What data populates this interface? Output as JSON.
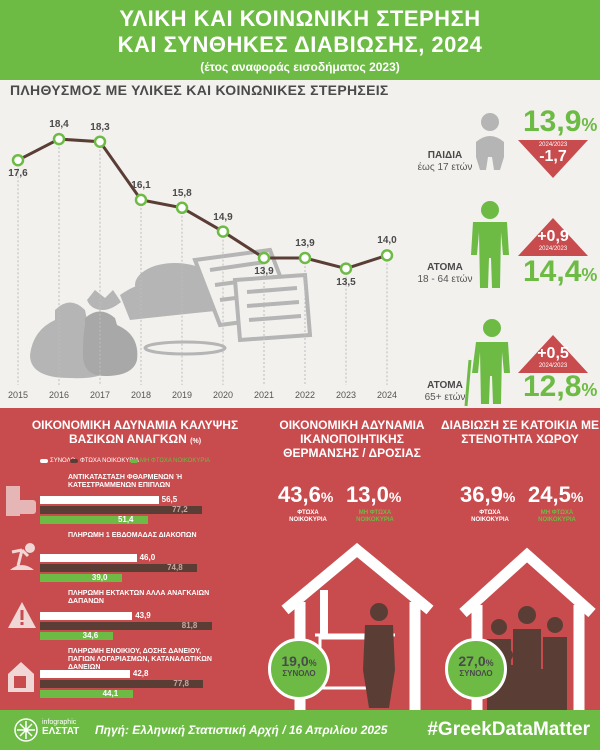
{
  "header": {
    "title_line1": "ΥΛΙΚΗ ΚΑΙ ΚΟΙΝΩΝΙΚΗ ΣΤΕΡΗΣΗ",
    "title_line2": "ΚΑΙ ΣΥΝΘΗΚΕΣ ΔΙΑΒΙΩΣΗΣ, 2024",
    "subtitle": "(έτος αναφοράς εισοδήματος 2023)"
  },
  "section1": {
    "title": "ΠΛΗΘΥΣΜΟΣ ΜΕ ΥΛΙΚΕΣ ΚΑΙ ΚΟΙΝΩΝΙΚΕΣ ΣΤΕΡΗΣΕΙΣ"
  },
  "chart_data": [
    {
      "type": "line",
      "title": "ΠΛΗΘΥΣΜΟΣ ΜΕ ΥΛΙΚΕΣ ΚΑΙ ΚΟΙΝΩΝΙΚΕΣ ΣΤΕΡΗΣΕΙΣ",
      "x": [
        "2015",
        "2016",
        "2017",
        "2018",
        "2019",
        "2020",
        "2021",
        "2022",
        "2023",
        "2024"
      ],
      "y": [
        17.6,
        18.4,
        18.3,
        16.1,
        15.8,
        14.9,
        13.9,
        13.9,
        13.5,
        14.0
      ],
      "labels": [
        "17,6",
        "18,4",
        "18,3",
        "16,1",
        "15,8",
        "14,9",
        "13,9",
        "13,9",
        "13,5",
        "14,0"
      ],
      "ylim": [
        12.5,
        19.5
      ],
      "line_color": "#5a3e36",
      "marker_color": "#6dbb45"
    },
    {
      "type": "bar",
      "title": "ΟΙΚΟΝΟΜΙΚΗ ΑΔΥΝΑΜΙΑ ΚΑΛΥΨΗΣ ΒΑΣΙΚΩΝ ΑΝΑΓΚΩΝ",
      "unit": "(%)",
      "categories": [
        "ΑΝΤΙΚΑΤΑΣΤΑΣΗ ΦΘΑΡΜΕΝΩΝ Ή ΚΑΤΕΣΤΡΑΜΜΕΝΩΝ ΕΠΙΠΛΩΝ",
        "ΠΛΗΡΩΜΗ 1 ΕΒΔΟΜΑΔΑΣ ΔΙΑΚΟΠΩΝ",
        "ΠΛΗΡΩΜΗ ΕΚΤΑΚΤΩΝ ΑΛΛΑ ΑΝΑΓΚΑΙΩΝ ΔΑΠΑΝΩΝ",
        "ΠΛΗΡΩΜΗ ΕΝΟΙΚΙΟΥ, ΔΟΣΗΣ ΔΑΝΕΙΟΥ, ΠΑΓΙΩΝ ΛΟΓΑΡΙΑΣΜΩΝ, ΚΑΤΑΝΑΛΩΤΙΚΩΝ ΔΑΝΕΙΩΝ"
      ],
      "series": [
        {
          "name": "ΣΥΝΟΛΟ",
          "values": [
            56.5,
            46.0,
            43.9,
            42.8
          ],
          "labels": [
            "56,5",
            "46,0",
            "43,9",
            "42,8"
          ],
          "color": "#ffffff"
        },
        {
          "name": "ΦΤΩΧΑ ΝΟΙΚΟΚΥΡΙΑ",
          "values": [
            77.2,
            74.8,
            81.8,
            77.8
          ],
          "labels": [
            "77,2",
            "74,8",
            "81,8",
            "77,8"
          ],
          "color": "#5a3e36"
        },
        {
          "name": "ΜΗ ΦΤΩΧΑ ΝΟΙΚΟΚΥΡΙΑ",
          "values": [
            51.4,
            39.0,
            34.6,
            44.1
          ],
          "labels": [
            "51,4",
            "39,0",
            "34,6",
            "44,1"
          ],
          "color": "#6dbb45"
        }
      ],
      "xlim": [
        0,
        100
      ]
    }
  ],
  "groups": [
    {
      "name": "ΠΑΙΔΙΑ",
      "age": "έως 17 ετών",
      "value": "13,9",
      "unit": "%",
      "period": "2024/2023",
      "change": "-1,7",
      "direction": "down"
    },
    {
      "name": "ΑΤΟΜΑ",
      "age": "18 - 64 ετών",
      "value": "14,4",
      "unit": "%",
      "period": "2024/2023",
      "change": "+0,9",
      "direction": "up"
    },
    {
      "name": "ΑΤΟΜΑ",
      "age": "65+ ετών",
      "value": "12,8",
      "unit": "%",
      "period": "2024/2023",
      "change": "+0,5",
      "direction": "up"
    }
  ],
  "heating": {
    "title": "ΟΙΚΟΝΟΜΙΚΗ ΑΔΥΝΑΜΙΑ ΙΚΑΝΟΠΟΙΗΤΙΚΗΣ ΘΕΡΜΑΝΣΗΣ / ΔΡΟΣΙΑΣ",
    "poor_value": "43,6",
    "poor_label": "ΦΤΩΧΑ ΝΟΙΚΟΚΥΡΙΑ",
    "nonpoor_value": "13,0",
    "nonpoor_label": "ΜΗ ΦΤΩΧΑ ΝΟΙΚΟΚΥΡΙΑ",
    "total_value": "19,0",
    "total_label": "ΣΥΝΟΛΟ",
    "unit": "%"
  },
  "overcrowding": {
    "title": "ΔΙΑΒΙΩΣΗ ΣΕ ΚΑΤΟΙΚΙΑ ΜΕ ΣΤΕΝΟΤΗΤΑ ΧΩΡΟΥ",
    "poor_value": "36,9",
    "poor_label": "ΦΤΩΧΑ ΝΟΙΚΟΚΥΡΙΑ",
    "nonpoor_value": "24,5",
    "nonpoor_label": "ΜΗ ΦΤΩΧΑ ΝΟΙΚΟΚΥΡΙΑ",
    "total_value": "27,0",
    "total_label": "ΣΥΝΟΛΟ",
    "unit": "%"
  },
  "footer": {
    "logo_line1": "infographic",
    "logo_line2": "ΕΛΣΤΑΤ",
    "source": "Πηγή: Ελληνική Στατιστική Αρχή / 16 Απριλίου 2025",
    "hashtag": "#GreekDataMatter"
  },
  "colors": {
    "green": "#6dbb45",
    "red": "#c84b4e",
    "brown": "#5a3e36",
    "grey": "#b5b5b5"
  },
  "icons": [
    "sofa-icon",
    "palm-tree-icon",
    "warning-icon",
    "house-bill-icon",
    "child-icon",
    "adult-icon",
    "elderly-icon",
    "house-radiator-icon",
    "family-house-icon",
    "money-bags-icon",
    "bills-icon"
  ]
}
